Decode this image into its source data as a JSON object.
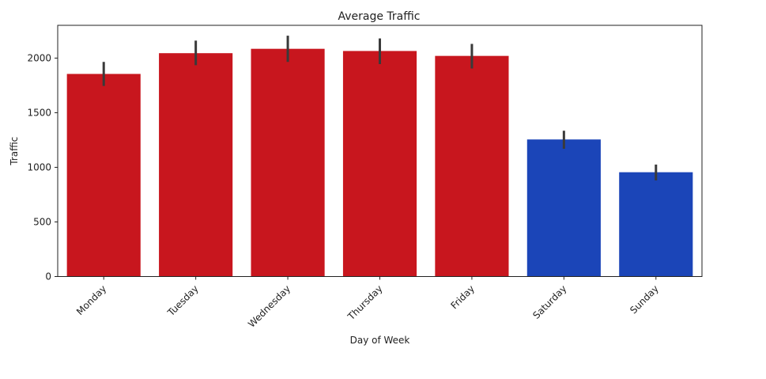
{
  "chart_data": {
    "type": "bar",
    "title": "Average Traffic",
    "xlabel": "Day of Week",
    "ylabel": "Traffic",
    "categories": [
      "Monday",
      "Tuesday",
      "Wednesday",
      "Thursday",
      "Friday",
      "Saturday",
      "Sunday"
    ],
    "values": [
      1855,
      2045,
      2085,
      2065,
      2020,
      1255,
      955
    ],
    "error_low": [
      1745,
      1935,
      1965,
      1945,
      1905,
      1170,
      880
    ],
    "error_high": [
      1965,
      2160,
      2205,
      2180,
      2130,
      1335,
      1025
    ],
    "bar_colors": [
      "#c8161e",
      "#c8161e",
      "#c8161e",
      "#c8161e",
      "#c8161e",
      "#1b45b8",
      "#1b45b8"
    ],
    "error_color": "#3a3a3a",
    "ylim": [
      0,
      2300
    ],
    "yticks": [
      0,
      500,
      1000,
      1500,
      2000
    ],
    "grid": false,
    "legend": "none"
  }
}
